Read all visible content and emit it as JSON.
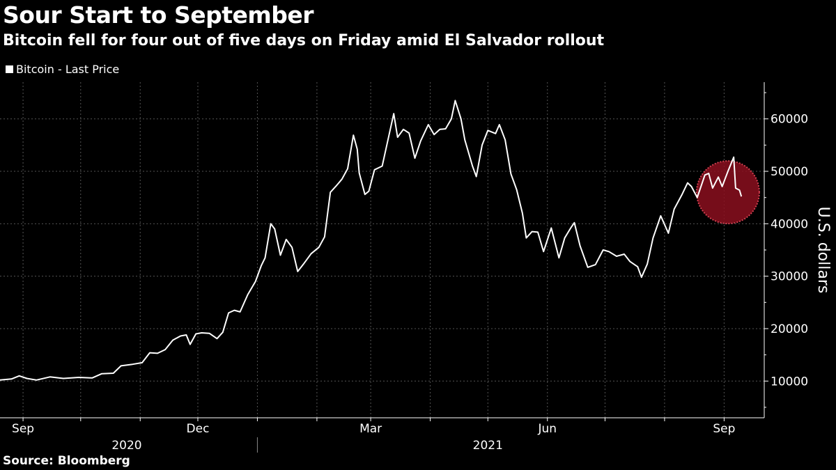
{
  "title": "Sour Start to September",
  "subtitle": "Bitcoin fell for four out of five days on Friday amid El Salvador rollout",
  "legend_label": "Bitcoin - Last Price",
  "source": "Source: Bloomberg",
  "colors": {
    "background": "#000000",
    "line": "#ffffff",
    "grid": "#555555",
    "highlight": "#8b0f1e"
  },
  "chart_data": {
    "type": "line",
    "title": "Sour Start to September",
    "ylabel": "U.S. dollars",
    "ylim": [
      3000,
      67000
    ],
    "yticks": [
      10000,
      20000,
      30000,
      40000,
      50000,
      60000
    ],
    "ytick_labels": [
      "10000",
      "20000",
      "30000",
      "40000",
      "50000",
      "60000"
    ],
    "xlim": [
      "2020-08-20",
      "2021-09-15"
    ],
    "xticks": [
      {
        "date": "2020-09-01",
        "label": "Sep"
      },
      {
        "date": "2020-12-01",
        "label": "Dec"
      },
      {
        "date": "2021-03-01",
        "label": "Mar"
      },
      {
        "date": "2021-06-01",
        "label": "Jun"
      },
      {
        "date": "2021-09-01",
        "label": "Sep"
      }
    ],
    "year_labels": [
      {
        "label": "2020",
        "date": "2020-10-25"
      },
      {
        "label": "2021",
        "date": "2021-05-01"
      }
    ],
    "year_divider": "2021-01-01",
    "grid": true,
    "legend": "top-left",
    "highlight": {
      "x": "2021-09-03",
      "y": 46000,
      "note": "red circle around September decline"
    },
    "series": [
      {
        "name": "Bitcoin - Last Price",
        "points": [
          [
            "2020-08-20",
            10200
          ],
          [
            "2020-08-26",
            10400
          ],
          [
            "2020-08-30",
            11000
          ],
          [
            "2020-09-03",
            10500
          ],
          [
            "2020-09-08",
            10200
          ],
          [
            "2020-09-15",
            10800
          ],
          [
            "2020-09-22",
            10500
          ],
          [
            "2020-09-30",
            10700
          ],
          [
            "2020-10-07",
            10600
          ],
          [
            "2020-10-12",
            11400
          ],
          [
            "2020-10-18",
            11500
          ],
          [
            "2020-10-22",
            12900
          ],
          [
            "2020-10-28",
            13200
          ],
          [
            "2020-11-02",
            13500
          ],
          [
            "2020-11-06",
            15400
          ],
          [
            "2020-11-10",
            15300
          ],
          [
            "2020-11-14",
            16000
          ],
          [
            "2020-11-18",
            17800
          ],
          [
            "2020-11-22",
            18600
          ],
          [
            "2020-11-25",
            18800
          ],
          [
            "2020-11-27",
            17000
          ],
          [
            "2020-11-30",
            19000
          ],
          [
            "2020-12-03",
            19200
          ],
          [
            "2020-12-07",
            19100
          ],
          [
            "2020-12-11",
            18100
          ],
          [
            "2020-12-14",
            19300
          ],
          [
            "2020-12-17",
            23000
          ],
          [
            "2020-12-20",
            23500
          ],
          [
            "2020-12-23",
            23200
          ],
          [
            "2020-12-27",
            26500
          ],
          [
            "2020-12-31",
            29000
          ],
          [
            "2021-01-03",
            32000
          ],
          [
            "2021-01-05",
            33500
          ],
          [
            "2021-01-08",
            40000
          ],
          [
            "2021-01-10",
            39000
          ],
          [
            "2021-01-13",
            34000
          ],
          [
            "2021-01-16",
            37000
          ],
          [
            "2021-01-19",
            35500
          ],
          [
            "2021-01-22",
            30900
          ],
          [
            "2021-01-25",
            32300
          ],
          [
            "2021-01-29",
            34300
          ],
          [
            "2021-02-02",
            35500
          ],
          [
            "2021-02-05",
            37500
          ],
          [
            "2021-02-08",
            46000
          ],
          [
            "2021-02-11",
            47200
          ],
          [
            "2021-02-14",
            48500
          ],
          [
            "2021-02-17",
            50500
          ],
          [
            "2021-02-20",
            56900
          ],
          [
            "2021-02-22",
            54200
          ],
          [
            "2021-02-23",
            49700
          ],
          [
            "2021-02-26",
            45600
          ],
          [
            "2021-02-28",
            46200
          ],
          [
            "2021-03-03",
            50300
          ],
          [
            "2021-03-07",
            51000
          ],
          [
            "2021-03-10",
            56000
          ],
          [
            "2021-03-13",
            61000
          ],
          [
            "2021-03-15",
            56500
          ],
          [
            "2021-03-18",
            58000
          ],
          [
            "2021-03-21",
            57300
          ],
          [
            "2021-03-24",
            52500
          ],
          [
            "2021-03-27",
            55800
          ],
          [
            "2021-03-31",
            58900
          ],
          [
            "2021-04-03",
            57000
          ],
          [
            "2021-04-06",
            58000
          ],
          [
            "2021-04-09",
            58100
          ],
          [
            "2021-04-12",
            60000
          ],
          [
            "2021-04-14",
            63500
          ],
          [
            "2021-04-17",
            60000
          ],
          [
            "2021-04-19",
            56000
          ],
          [
            "2021-04-23",
            51000
          ],
          [
            "2021-04-25",
            49000
          ],
          [
            "2021-04-28",
            55000
          ],
          [
            "2021-05-01",
            57800
          ],
          [
            "2021-05-05",
            57200
          ],
          [
            "2021-05-07",
            58900
          ],
          [
            "2021-05-10",
            56000
          ],
          [
            "2021-05-13",
            49500
          ],
          [
            "2021-05-16",
            46500
          ],
          [
            "2021-05-19",
            42000
          ],
          [
            "2021-05-21",
            37300
          ],
          [
            "2021-05-24",
            38500
          ],
          [
            "2021-05-27",
            38400
          ],
          [
            "2021-05-30",
            34700
          ],
          [
            "2021-06-03",
            39200
          ],
          [
            "2021-06-07",
            33500
          ],
          [
            "2021-06-10",
            37300
          ],
          [
            "2021-06-13",
            39100
          ],
          [
            "2021-06-15",
            40200
          ],
          [
            "2021-06-18",
            35800
          ],
          [
            "2021-06-22",
            31700
          ],
          [
            "2021-06-26",
            32200
          ],
          [
            "2021-06-30",
            35000
          ],
          [
            "2021-07-03",
            34700
          ],
          [
            "2021-07-07",
            33800
          ],
          [
            "2021-07-11",
            34200
          ],
          [
            "2021-07-14",
            32800
          ],
          [
            "2021-07-18",
            31800
          ],
          [
            "2021-07-20",
            29800
          ],
          [
            "2021-07-23",
            32300
          ],
          [
            "2021-07-26",
            37300
          ],
          [
            "2021-07-30",
            41500
          ],
          [
            "2021-08-03",
            38200
          ],
          [
            "2021-08-06",
            42800
          ],
          [
            "2021-08-10",
            45500
          ],
          [
            "2021-08-13",
            47800
          ],
          [
            "2021-08-15",
            47100
          ],
          [
            "2021-08-18",
            45000
          ],
          [
            "2021-08-22",
            49300
          ],
          [
            "2021-08-24",
            49600
          ],
          [
            "2021-08-26",
            46800
          ],
          [
            "2021-08-29",
            48900
          ],
          [
            "2021-08-31",
            47100
          ],
          [
            "2021-09-03",
            50000
          ],
          [
            "2021-09-06",
            52700
          ],
          [
            "2021-09-07",
            46800
          ],
          [
            "2021-09-09",
            46400
          ],
          [
            "2021-09-10",
            45200
          ]
        ]
      }
    ]
  }
}
